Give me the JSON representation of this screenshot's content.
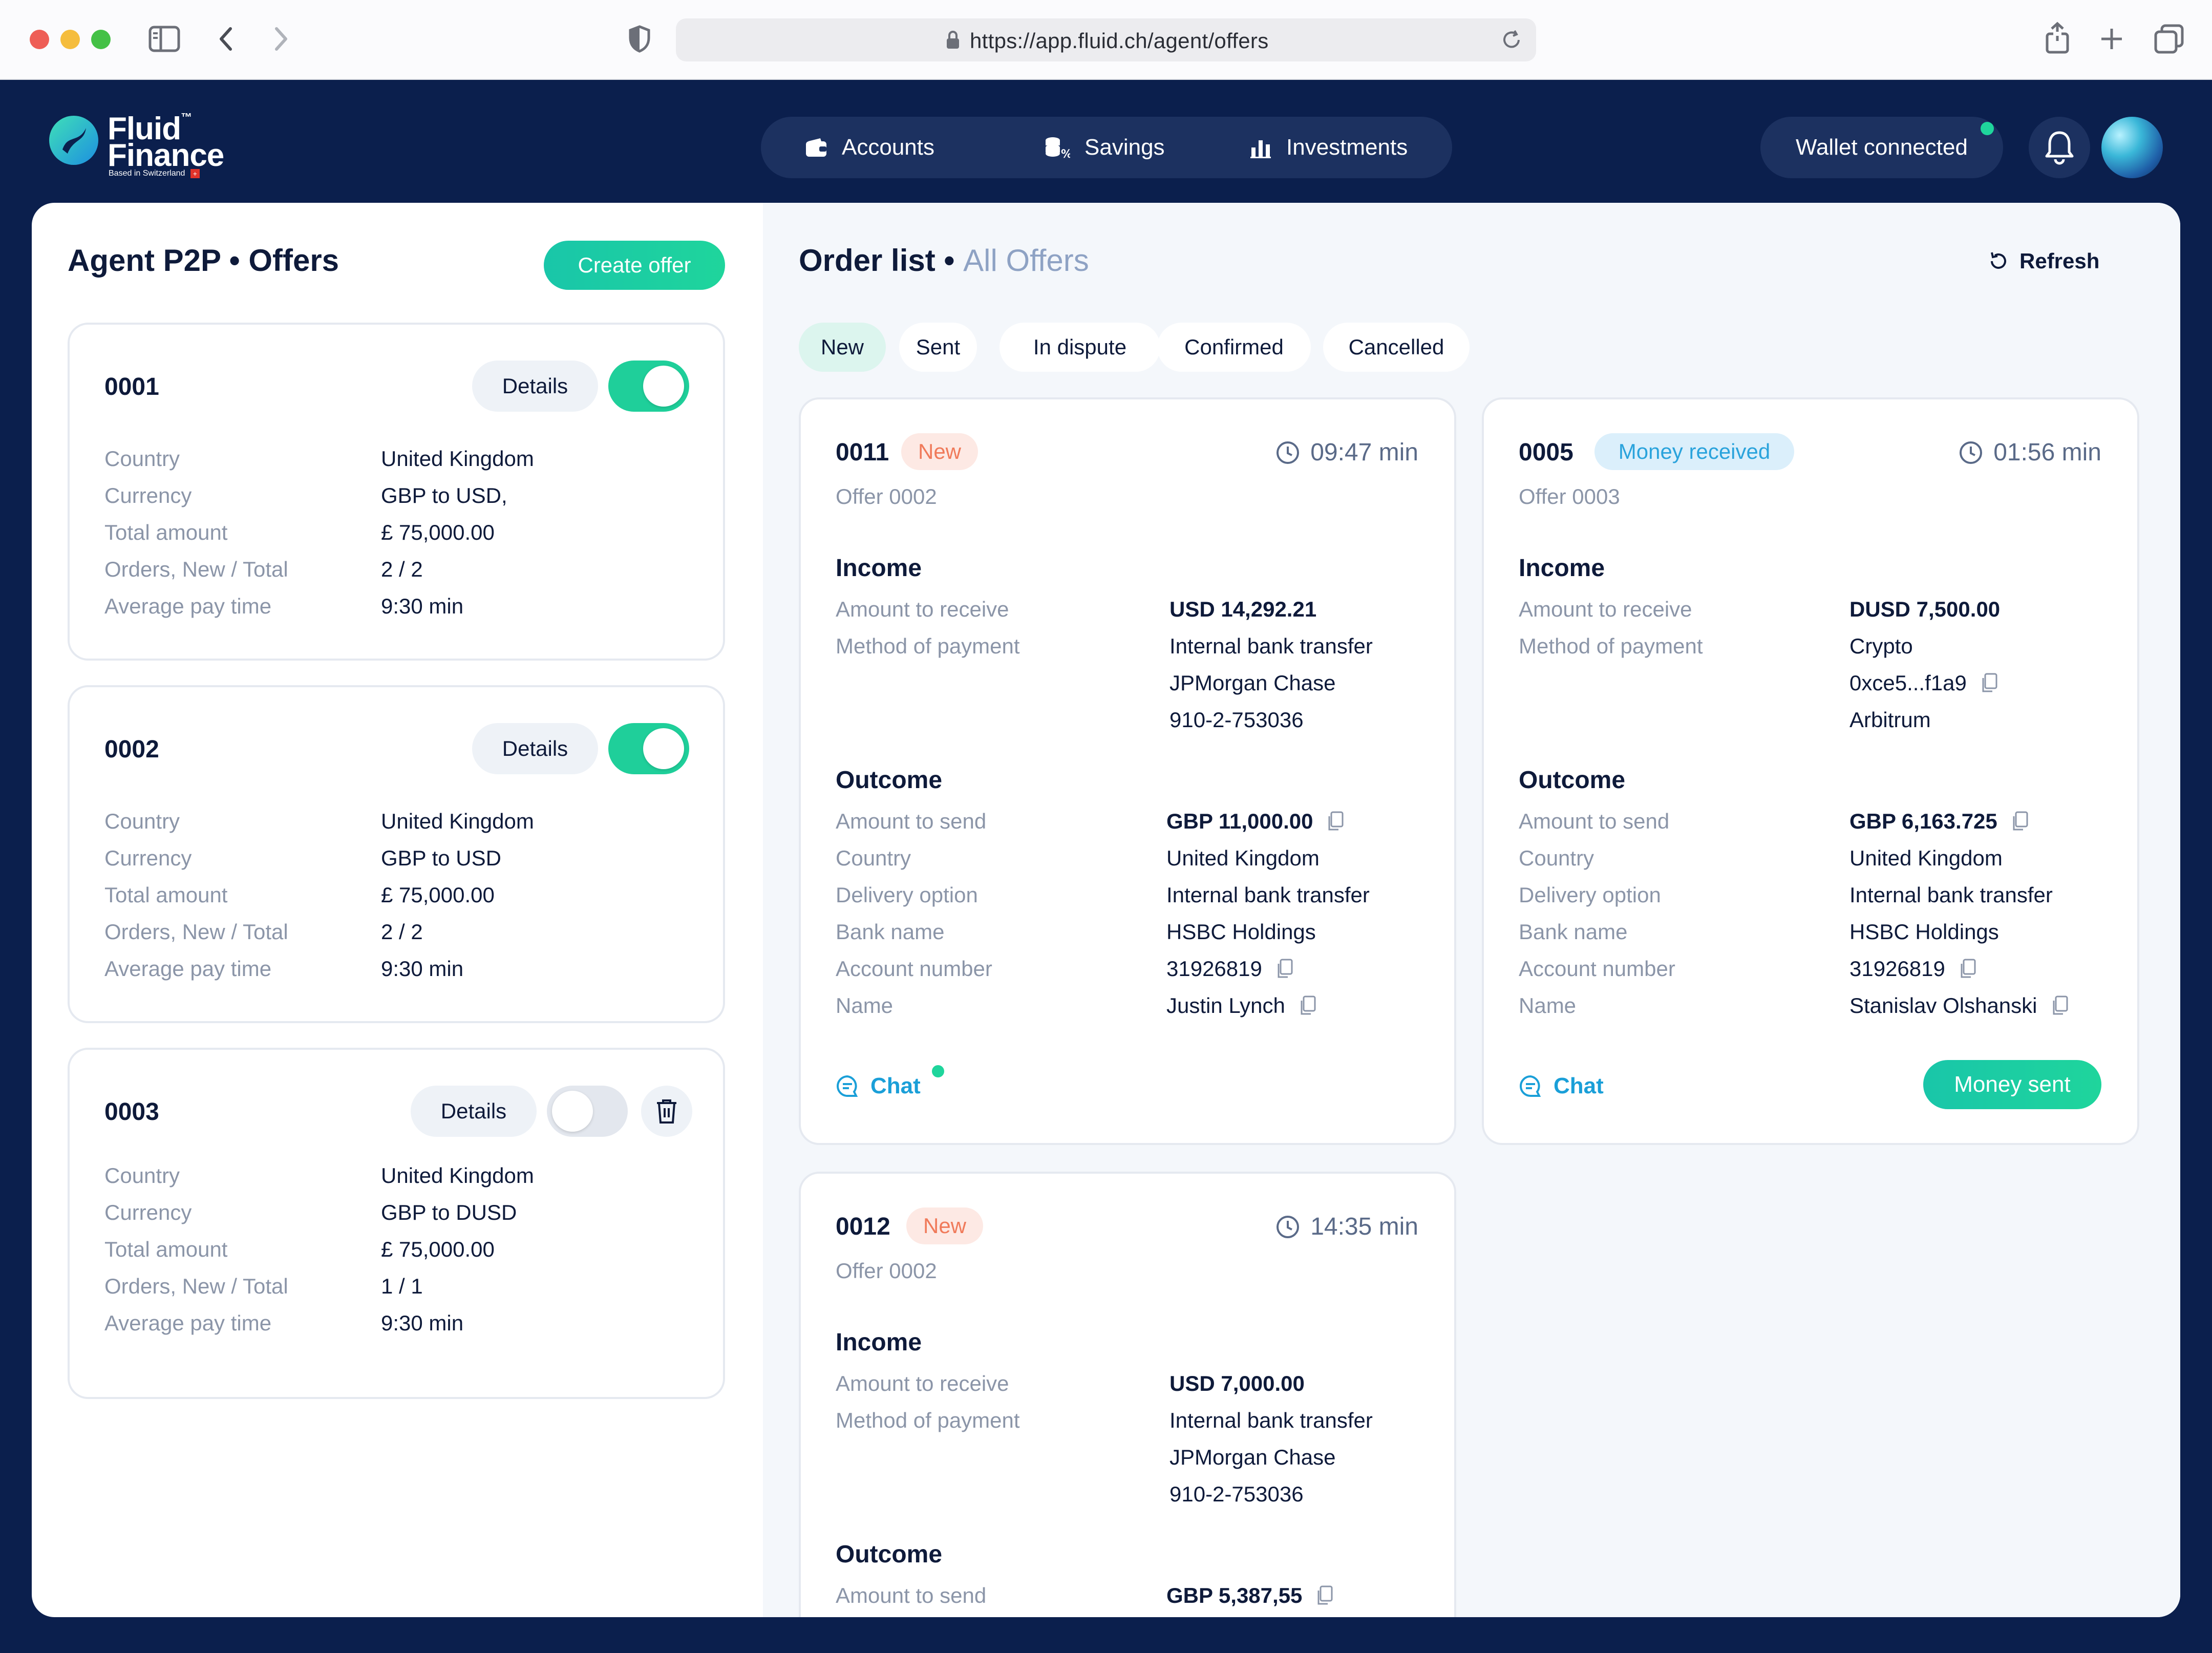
{
  "browser": {
    "url": "https://app.fluid.ch/agent/offers",
    "colors": {
      "close": "#ee5e56",
      "minimize": "#f5bd3d",
      "maximize": "#44c146"
    }
  },
  "app": {
    "logo": {
      "line1": "Fluid",
      "tm": "™",
      "line2": "Finance",
      "tagline": "Based in Switzerland"
    },
    "nav": [
      {
        "label": "Accounts",
        "icon": "wallet-icon"
      },
      {
        "label": "Savings",
        "icon": "coins-icon"
      },
      {
        "label": "Investments",
        "icon": "bar-chart-icon"
      }
    ],
    "wallet_label": "Wallet connected",
    "colors": {
      "header_bg": "#0b1f4d",
      "accent": "#1fd59c",
      "info": "#1a9fd8"
    }
  },
  "left": {
    "title": "Agent P2P • Offers",
    "create_label": "Create offer",
    "details_label": "Details",
    "field_labels": [
      "Country",
      "Currency",
      "Total amount",
      "Orders, New / Total",
      "Average pay time"
    ],
    "offers": [
      {
        "id": "0001",
        "enabled": true,
        "values": [
          "United Kingdom",
          "GBP to USD,",
          "£ 75,000.00",
          "2 / 2",
          "9:30 min"
        ]
      },
      {
        "id": "0002",
        "enabled": true,
        "values": [
          "United Kingdom",
          "GBP to USD",
          "£ 75,000.00",
          "2 / 2",
          "9:30 min"
        ]
      },
      {
        "id": "0003",
        "enabled": false,
        "values": [
          "United Kingdom",
          "GBP to DUSD",
          "£ 75,000.00",
          "1 / 1",
          "9:30 min"
        ]
      }
    ]
  },
  "right": {
    "title": "Order list",
    "subtitle": "All Offers",
    "refresh_label": "Refresh",
    "tabs": [
      "New",
      "Sent",
      "In dispute",
      "Confirmed",
      "Cancelled"
    ],
    "active_tab": "New",
    "income_heading": "Income",
    "outcome_heading": "Outcome",
    "chat_label": "Chat",
    "money_sent_label": "Money sent",
    "income_labels": [
      "Amount to receive",
      "Method of payment"
    ],
    "outcome_labels": [
      "Amount to send",
      "Country",
      "Delivery option",
      "Bank name",
      "Account number",
      "Name"
    ],
    "orders": [
      {
        "id": "0011",
        "status": "New",
        "timer": "09:47 min",
        "offer": "Offer 0002",
        "income": {
          "amount": "USD 14,292.21",
          "method": [
            "Internal bank transfer",
            "JPMorgan Chase",
            "910-2-753036"
          ]
        },
        "outcome": {
          "amount": "GBP 11,000.00",
          "country": "United Kingdom",
          "delivery": "Internal bank transfer",
          "bank": "HSBC Holdings",
          "account": "31926819",
          "name": "Justin Lynch"
        }
      },
      {
        "id": "0005",
        "status": "Money received",
        "timer": "01:56 min",
        "offer": "Offer 0003",
        "income": {
          "amount": "DUSD 7,500.00",
          "method": [
            "Crypto",
            "0xce5...f1a9",
            "Arbitrum"
          ]
        },
        "outcome": {
          "amount": "GBP 6,163.725",
          "country": "United Kingdom",
          "delivery": "Internal bank transfer",
          "bank": "HSBC Holdings",
          "account": "31926819",
          "name": "Stanislav Olshanski"
        }
      },
      {
        "id": "0012",
        "status": "New",
        "timer": "14:35 min",
        "offer": "Offer 0002",
        "income": {
          "amount": "USD 7,000.00",
          "method": [
            "Internal bank transfer",
            "JPMorgan Chase",
            "910-2-753036"
          ]
        },
        "outcome": {
          "amount": "GBP 5,387,55"
        }
      }
    ]
  }
}
